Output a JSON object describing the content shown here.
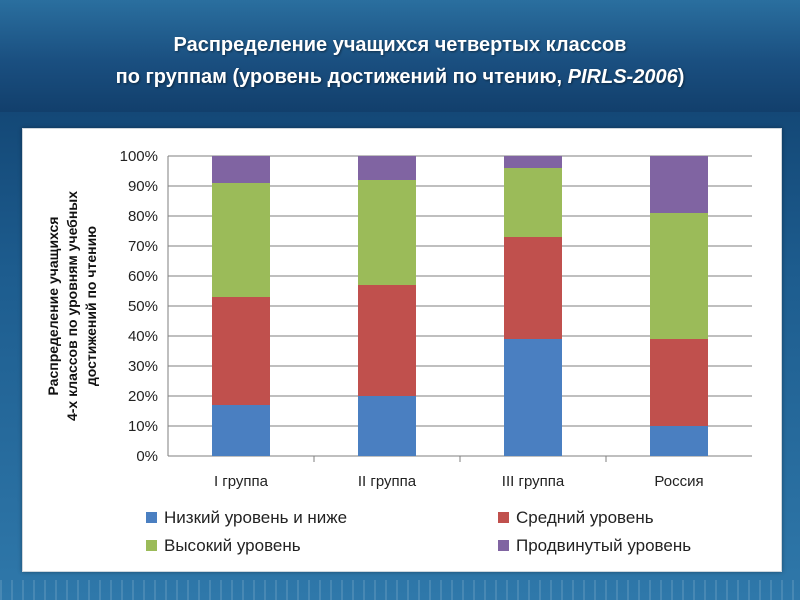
{
  "slide": {
    "title_line1": "Распределение учащихся четвертых классов",
    "title_line2_prefix": "по группам (уровень достижений по чтению, ",
    "title_line2_em": "PIRLS-2006",
    "title_line2_suffix": ")"
  },
  "colors": {
    "low": "#4a7fc1",
    "medium": "#c0504d",
    "high": "#9bbb59",
    "advanced": "#8064a2",
    "grid": "#7f7f7f"
  },
  "chart_data": {
    "type": "bar",
    "stacked": true,
    "title": "",
    "xlabel": "",
    "ylabel_lines": [
      "Распределение учащихся",
      "4-х классов по уровням учебных",
      "достижений по чтению"
    ],
    "ylim": [
      0,
      100
    ],
    "yticks": [
      "0%",
      "10%",
      "20%",
      "30%",
      "40%",
      "50%",
      "60%",
      "70%",
      "80%",
      "90%",
      "100%"
    ],
    "grid": true,
    "legend_position": "bottom",
    "categories": [
      "I группа",
      "II группа",
      "III группа",
      "Россия"
    ],
    "series": [
      {
        "name": "Низкий уровень и ниже",
        "color_key": "low",
        "values": [
          17,
          20,
          39,
          10
        ]
      },
      {
        "name": "Средний уровень",
        "color_key": "medium",
        "values": [
          36,
          37,
          34,
          29
        ]
      },
      {
        "name": "Высокий уровень",
        "color_key": "high",
        "values": [
          38,
          35,
          23,
          42
        ]
      },
      {
        "name": "Продвинутый уровень",
        "color_key": "advanced",
        "values": [
          9,
          8,
          4,
          19
        ]
      }
    ]
  }
}
